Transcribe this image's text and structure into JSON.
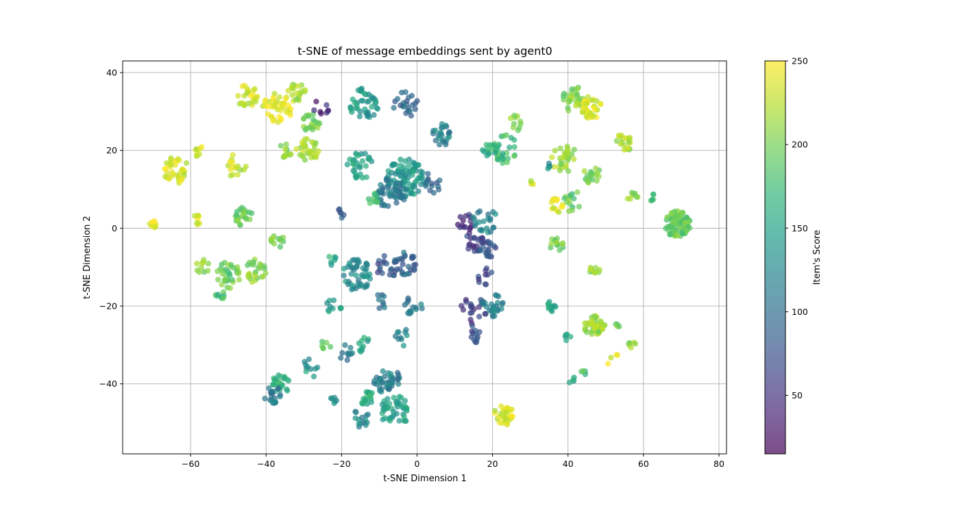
{
  "chart_data": {
    "type": "scatter",
    "title": "t-SNE of message embeddings sent by agent0",
    "xlabel": "t-SNE Dimension 1",
    "ylabel": "t-SNE Dimension 2",
    "xlim": [
      -78,
      82
    ],
    "ylim": [
      -58,
      43
    ],
    "xticks": [
      -60,
      -40,
      -20,
      0,
      20,
      40,
      60,
      80
    ],
    "yticks": [
      -40,
      -20,
      0,
      20,
      40
    ],
    "grid": true,
    "colormap": "viridis",
    "colorbar": {
      "label": "Item's Score",
      "range": [
        15,
        250
      ],
      "ticks": [
        50,
        100,
        150,
        200,
        250
      ]
    },
    "clusters": [
      {
        "x": -70,
        "y": 1,
        "r": 1.0,
        "n": 10,
        "score": 240
      },
      {
        "x": -64,
        "y": 15,
        "r": 3.5,
        "n": 38,
        "score": 235
      },
      {
        "x": -58,
        "y": 20,
        "r": 1.8,
        "n": 8,
        "score": 230
      },
      {
        "x": -58,
        "y": 2,
        "r": 1.5,
        "n": 8,
        "score": 235
      },
      {
        "x": -48,
        "y": 16,
        "r": 3.0,
        "n": 16,
        "score": 228
      },
      {
        "x": -45,
        "y": 34,
        "r": 3.0,
        "n": 26,
        "score": 232
      },
      {
        "x": -37,
        "y": 31,
        "r": 4.0,
        "n": 42,
        "score": 240
      },
      {
        "x": -32,
        "y": 35,
        "r": 2.5,
        "n": 20,
        "score": 225
      },
      {
        "x": -28,
        "y": 27,
        "r": 2.5,
        "n": 22,
        "score": 200
      },
      {
        "x": -29,
        "y": 20,
        "r": 3.0,
        "n": 30,
        "score": 215
      },
      {
        "x": -35,
        "y": 20,
        "r": 2.0,
        "n": 12,
        "score": 205
      },
      {
        "x": -46,
        "y": 3,
        "r": 2.5,
        "n": 22,
        "score": 200
      },
      {
        "x": -50,
        "y": -12,
        "r": 3.5,
        "n": 32,
        "score": 195
      },
      {
        "x": -43,
        "y": -11,
        "r": 3.0,
        "n": 26,
        "score": 205
      },
      {
        "x": -37,
        "y": -3,
        "r": 2.0,
        "n": 12,
        "score": 200
      },
      {
        "x": -57,
        "y": -10,
        "r": 2.0,
        "n": 10,
        "score": 210
      },
      {
        "x": -52,
        "y": -17,
        "r": 1.5,
        "n": 8,
        "score": 180
      },
      {
        "x": -25,
        "y": 31,
        "r": 2.5,
        "n": 8,
        "score": 45
      },
      {
        "x": -14,
        "y": 32,
        "r": 4.0,
        "n": 42,
        "score": 140
      },
      {
        "x": -3,
        "y": 32,
        "r": 3.5,
        "n": 22,
        "score": 95
      },
      {
        "x": 6,
        "y": 24,
        "r": 3.0,
        "n": 24,
        "score": 115
      },
      {
        "x": -15,
        "y": 16,
        "r": 3.5,
        "n": 30,
        "score": 150
      },
      {
        "x": -3,
        "y": 13,
        "r": 5.0,
        "n": 85,
        "score": 140
      },
      {
        "x": -7,
        "y": 9,
        "r": 4.0,
        "n": 45,
        "score": 110
      },
      {
        "x": 5,
        "y": 12,
        "r": 3.0,
        "n": 14,
        "score": 90
      },
      {
        "x": -12,
        "y": 8,
        "r": 2.0,
        "n": 10,
        "score": 175
      },
      {
        "x": -20,
        "y": 4,
        "r": 1.5,
        "n": 6,
        "score": 80
      },
      {
        "x": 13,
        "y": 2,
        "r": 2.5,
        "n": 14,
        "score": 50
      },
      {
        "x": 18,
        "y": 2,
        "r": 3.5,
        "n": 22,
        "score": 120
      },
      {
        "x": 15,
        "y": -4,
        "r": 3.0,
        "n": 20,
        "score": 60
      },
      {
        "x": 19,
        "y": -5,
        "r": 2.5,
        "n": 20,
        "score": 75
      },
      {
        "x": 18,
        "y": -12,
        "r": 2.5,
        "n": 10,
        "score": 65
      },
      {
        "x": 15,
        "y": -21,
        "r": 3.5,
        "n": 20,
        "score": 55
      },
      {
        "x": 20,
        "y": -20,
        "r": 3.0,
        "n": 26,
        "score": 120
      },
      {
        "x": 16,
        "y": -27,
        "r": 2.5,
        "n": 12,
        "score": 70
      },
      {
        "x": -23,
        "y": -8,
        "r": 1.5,
        "n": 6,
        "score": 160
      },
      {
        "x": -16,
        "y": -12,
        "r": 4.0,
        "n": 48,
        "score": 125
      },
      {
        "x": -8,
        "y": -10,
        "r": 3.0,
        "n": 18,
        "score": 80
      },
      {
        "x": -3,
        "y": -9,
        "r": 3.0,
        "n": 26,
        "score": 90
      },
      {
        "x": -1,
        "y": -20,
        "r": 2.5,
        "n": 14,
        "score": 110
      },
      {
        "x": -4,
        "y": -28,
        "r": 2.5,
        "n": 10,
        "score": 120
      },
      {
        "x": -10,
        "y": -19,
        "r": 2.0,
        "n": 8,
        "score": 100
      },
      {
        "x": -22,
        "y": -20,
        "r": 2.0,
        "n": 10,
        "score": 150
      },
      {
        "x": -19,
        "y": -32,
        "r": 2.0,
        "n": 10,
        "score": 110
      },
      {
        "x": -14,
        "y": -30,
        "r": 2.0,
        "n": 10,
        "score": 150
      },
      {
        "x": -24,
        "y": -30,
        "r": 1.5,
        "n": 6,
        "score": 190
      },
      {
        "x": -28,
        "y": -36,
        "r": 2.5,
        "n": 10,
        "score": 140
      },
      {
        "x": -36,
        "y": -40,
        "r": 2.5,
        "n": 26,
        "score": 160
      },
      {
        "x": -38,
        "y": -43,
        "r": 2.5,
        "n": 20,
        "score": 110
      },
      {
        "x": -22,
        "y": -44,
        "r": 1.0,
        "n": 6,
        "score": 140
      },
      {
        "x": -8,
        "y": -39,
        "r": 3.5,
        "n": 40,
        "score": 115
      },
      {
        "x": -13,
        "y": -44,
        "r": 2.0,
        "n": 20,
        "score": 160
      },
      {
        "x": -6,
        "y": -47,
        "r": 4.0,
        "n": 45,
        "score": 145
      },
      {
        "x": -15,
        "y": -49,
        "r": 2.5,
        "n": 14,
        "score": 125
      },
      {
        "x": 23,
        "y": -48,
        "r": 2.6,
        "n": 36,
        "score": 235
      },
      {
        "x": 23,
        "y": 20,
        "r": 4.0,
        "n": 30,
        "score": 175
      },
      {
        "x": 19,
        "y": 20,
        "r": 2.0,
        "n": 12,
        "score": 160
      },
      {
        "x": 26,
        "y": 27,
        "r": 2.0,
        "n": 10,
        "score": 205
      },
      {
        "x": 31,
        "y": 12,
        "r": 1.0,
        "n": 4,
        "score": 230
      },
      {
        "x": 42,
        "y": 33,
        "r": 3.5,
        "n": 30,
        "score": 205
      },
      {
        "x": 46,
        "y": 31,
        "r": 3.0,
        "n": 34,
        "score": 240
      },
      {
        "x": 39,
        "y": 18,
        "r": 3.5,
        "n": 30,
        "score": 215
      },
      {
        "x": 46,
        "y": 14,
        "r": 2.5,
        "n": 18,
        "score": 200
      },
      {
        "x": 37,
        "y": 6,
        "r": 2.0,
        "n": 14,
        "score": 240
      },
      {
        "x": 41,
        "y": 7,
        "r": 3.0,
        "n": 14,
        "score": 190
      },
      {
        "x": 37,
        "y": -4,
        "r": 2.0,
        "n": 14,
        "score": 200
      },
      {
        "x": 35,
        "y": 16,
        "r": 1.0,
        "n": 4,
        "score": 130
      },
      {
        "x": 55,
        "y": 22,
        "r": 2.5,
        "n": 20,
        "score": 220
      },
      {
        "x": 57,
        "y": 8,
        "r": 1.5,
        "n": 8,
        "score": 205
      },
      {
        "x": 62,
        "y": 8,
        "r": 1.0,
        "n": 5,
        "score": 175
      },
      {
        "x": 69,
        "y": 1,
        "r": 3.4,
        "n": 85,
        "score": 195
      },
      {
        "x": 47,
        "y": -11,
        "r": 1.5,
        "n": 10,
        "score": 215
      },
      {
        "x": 36,
        "y": -20,
        "r": 1.5,
        "n": 12,
        "score": 150
      },
      {
        "x": 47,
        "y": -25,
        "r": 2.8,
        "n": 50,
        "score": 215
      },
      {
        "x": 53,
        "y": -25,
        "r": 1.0,
        "n": 4,
        "score": 200
      },
      {
        "x": 57,
        "y": -30,
        "r": 1.0,
        "n": 6,
        "score": 210
      },
      {
        "x": 40,
        "y": -28,
        "r": 1.0,
        "n": 5,
        "score": 145
      },
      {
        "x": 41,
        "y": -39,
        "r": 1.0,
        "n": 4,
        "score": 150
      },
      {
        "x": 44,
        "y": -37,
        "r": 1.0,
        "n": 4,
        "score": 180
      },
      {
        "x": 52,
        "y": -34,
        "r": 2.0,
        "n": 4,
        "score": 235
      }
    ]
  }
}
